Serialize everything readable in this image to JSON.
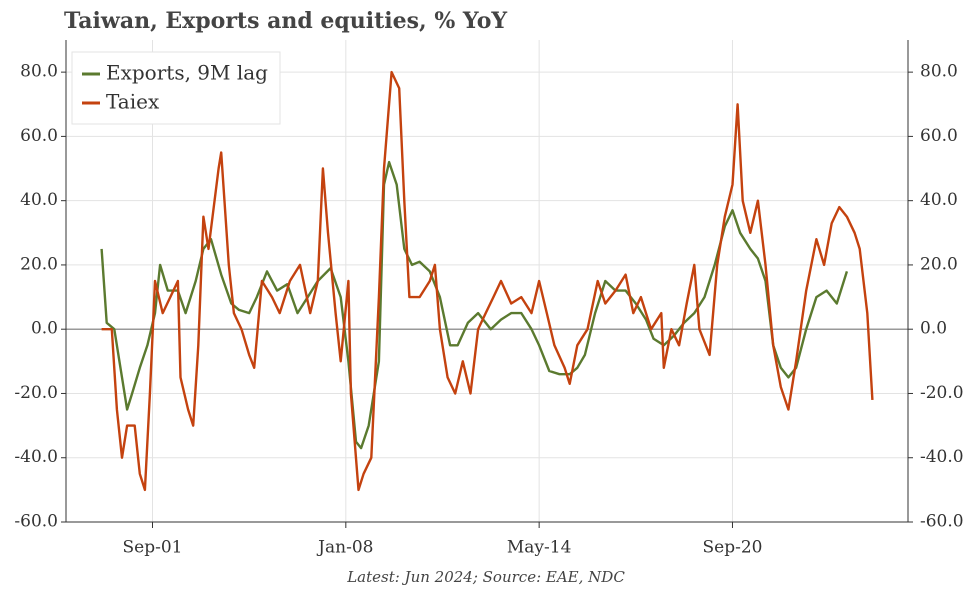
{
  "chart_data": {
    "type": "line",
    "title": "Taiwan, Exports and equities, % YoY",
    "footnote": "Latest: Jun 2024; Source: EAE, NDC",
    "xlim": [
      "Nov-98",
      "Jun-26"
    ],
    "xticks": [
      "Sep-01",
      "Jan-08",
      "May-14",
      "Sep-20"
    ],
    "ylim": [
      -60,
      90
    ],
    "yticks": [
      {
        "value": -60,
        "label": "-60.0"
      },
      {
        "value": -40,
        "label": "-40.0"
      },
      {
        "value": -20,
        "label": "-20.0"
      },
      {
        "value": 0,
        "label": "0.0"
      },
      {
        "value": 20,
        "label": "20.0"
      },
      {
        "value": 40,
        "label": "40.0"
      },
      {
        "value": 60,
        "label": "60.0"
      },
      {
        "value": 80,
        "label": "80.0"
      }
    ],
    "y2lim": [
      -60,
      90
    ],
    "y2ticks": [
      {
        "value": -60,
        "label": "-60.0"
      },
      {
        "value": -40,
        "label": "-40.0"
      },
      {
        "value": -20,
        "label": "-20.0"
      },
      {
        "value": 0,
        "label": "0.0"
      },
      {
        "value": 20,
        "label": "20.0"
      },
      {
        "value": 40,
        "label": "40.0"
      },
      {
        "value": 60,
        "label": "60.0"
      },
      {
        "value": 80,
        "label": "80.0"
      }
    ],
    "grid": true,
    "legend": "upper left",
    "series": [
      {
        "name": "Exports, 9M lag",
        "color": "#5b7a2f",
        "x": [
          "Jan-00",
          "Mar-00",
          "Jun-00",
          "Sep-00",
          "Nov-00",
          "Jan-01",
          "Apr-01",
          "Jul-01",
          "Oct-01",
          "Dec-01",
          "Mar-02",
          "Jul-02",
          "Oct-02",
          "Feb-03",
          "May-03",
          "Aug-03",
          "Dec-03",
          "Apr-04",
          "Jul-04",
          "Nov-04",
          "Feb-05",
          "Jun-05",
          "Oct-05",
          "Feb-06",
          "Jun-06",
          "Oct-06",
          "Feb-07",
          "Jul-07",
          "Nov-07",
          "Feb-08",
          "May-08",
          "Jul-08",
          "Oct-08",
          "Feb-09",
          "Apr-09",
          "Jun-09",
          "Sep-09",
          "Dec-09",
          "Mar-10",
          "Jun-10",
          "Oct-10",
          "Feb-11",
          "Jun-11",
          "Sep-11",
          "Jan-12",
          "May-12",
          "Oct-12",
          "Feb-13",
          "Jun-13",
          "Oct-13",
          "Feb-14",
          "May-14",
          "Sep-14",
          "Jan-15",
          "May-15",
          "Aug-15",
          "Nov-15",
          "Mar-16",
          "Jul-16",
          "Nov-16",
          "Mar-17",
          "Jul-17",
          "Nov-17",
          "Feb-18",
          "Jun-18",
          "Oct-18",
          "Feb-19",
          "Jun-19",
          "Oct-19",
          "Feb-20",
          "Jun-20",
          "Sep-20",
          "Dec-20",
          "Apr-21",
          "Jul-21",
          "Oct-21",
          "Jan-22",
          "Apr-22",
          "Jul-22",
          "Oct-22",
          "Feb-23",
          "Jun-23",
          "Oct-23",
          "Feb-24",
          "Jun-24"
        ],
        "values": [
          25,
          2,
          0,
          -15,
          -25,
          -20,
          -12,
          -5,
          5,
          20,
          12,
          12,
          5,
          15,
          25,
          28,
          17,
          8,
          6,
          5,
          10,
          18,
          12,
          14,
          5,
          10,
          15,
          19,
          10,
          -10,
          -35,
          -37,
          -30,
          -10,
          45,
          52,
          45,
          25,
          20,
          21,
          18,
          10,
          -5,
          -5,
          2,
          5,
          0,
          3,
          5,
          5,
          0,
          -5,
          -13,
          -14,
          -14,
          -12,
          -8,
          5,
          15,
          12,
          12,
          8,
          3,
          -3,
          -5,
          -2,
          2,
          5,
          10,
          20,
          32,
          37,
          30,
          25,
          22,
          15,
          -5,
          -12,
          -15,
          -12,
          0,
          10,
          12,
          8,
          18
        ]
      },
      {
        "name": "Taiex",
        "color": "#c4420f",
        "x": [
          "Jan-00",
          "May-00",
          "Jul-00",
          "Sep-00",
          "Nov-00",
          "Feb-01",
          "Apr-01",
          "Jun-01",
          "Aug-01",
          "Oct-01",
          "Jan-02",
          "Apr-02",
          "Jul-02",
          "Aug-02",
          "Nov-02",
          "Jan-03",
          "Mar-03",
          "May-03",
          "Jul-03",
          "Nov-03",
          "Dec-03",
          "Mar-04",
          "May-04",
          "Aug-04",
          "Nov-04",
          "Jan-05",
          "Apr-05",
          "Aug-05",
          "Nov-05",
          "Mar-06",
          "Jul-06",
          "Nov-06",
          "Feb-07",
          "Apr-07",
          "Jun-07",
          "Sep-07",
          "Nov-07",
          "Feb-08",
          "Mar-08",
          "Jun-08",
          "Aug-08",
          "Nov-08",
          "Feb-09",
          "Apr-09",
          "Jul-09",
          "Oct-09",
          "Dec-09",
          "Feb-10",
          "Jun-10",
          "Oct-10",
          "Dec-10",
          "Feb-11",
          "May-11",
          "Aug-11",
          "Nov-11",
          "Feb-12",
          "May-12",
          "Aug-12",
          "Nov-12",
          "Feb-13",
          "Jun-13",
          "Oct-13",
          "Feb-14",
          "May-14",
          "Aug-14",
          "Nov-14",
          "Mar-15",
          "May-15",
          "Aug-15",
          "Dec-15",
          "Apr-16",
          "Jul-16",
          "Nov-16",
          "Mar-17",
          "Jun-17",
          "Sep-17",
          "Jan-18",
          "May-18",
          "Jun-18",
          "Sep-18",
          "Dec-18",
          "Mar-19",
          "Jun-19",
          "Aug-19",
          "Dec-19",
          "Mar-20",
          "Jun-20",
          "Sep-20",
          "Nov-20",
          "Jan-21",
          "Apr-21",
          "Jul-21",
          "Oct-21",
          "Jan-22",
          "Apr-22",
          "Jul-22",
          "Oct-22",
          "Feb-23",
          "Jun-23",
          "Sep-23",
          "Dec-23",
          "Mar-24",
          "Jun-24",
          "Sep-24",
          "Nov-24",
          "Feb-25",
          "Apr-25"
        ],
        "values": [
          0,
          0,
          -25,
          -40,
          -30,
          -30,
          -45,
          -50,
          -20,
          15,
          5,
          10,
          15,
          -15,
          -25,
          -30,
          -5,
          35,
          25,
          50,
          55,
          20,
          5,
          0,
          -8,
          -12,
          15,
          10,
          5,
          15,
          20,
          5,
          15,
          50,
          30,
          5,
          -10,
          15,
          -20,
          -50,
          -45,
          -40,
          10,
          50,
          80,
          75,
          40,
          10,
          10,
          15,
          20,
          0,
          -15,
          -20,
          -10,
          -20,
          0,
          5,
          10,
          15,
          8,
          10,
          5,
          15,
          5,
          -5,
          -12,
          -17,
          -5,
          0,
          15,
          8,
          12,
          17,
          5,
          10,
          0,
          5,
          -12,
          0,
          -5,
          8,
          20,
          0,
          -8,
          20,
          35,
          45,
          70,
          40,
          30,
          40,
          20,
          -5,
          -18,
          -25,
          -10,
          12,
          28,
          20,
          33,
          38,
          35,
          30,
          25,
          5,
          -22
        ]
      }
    ]
  }
}
